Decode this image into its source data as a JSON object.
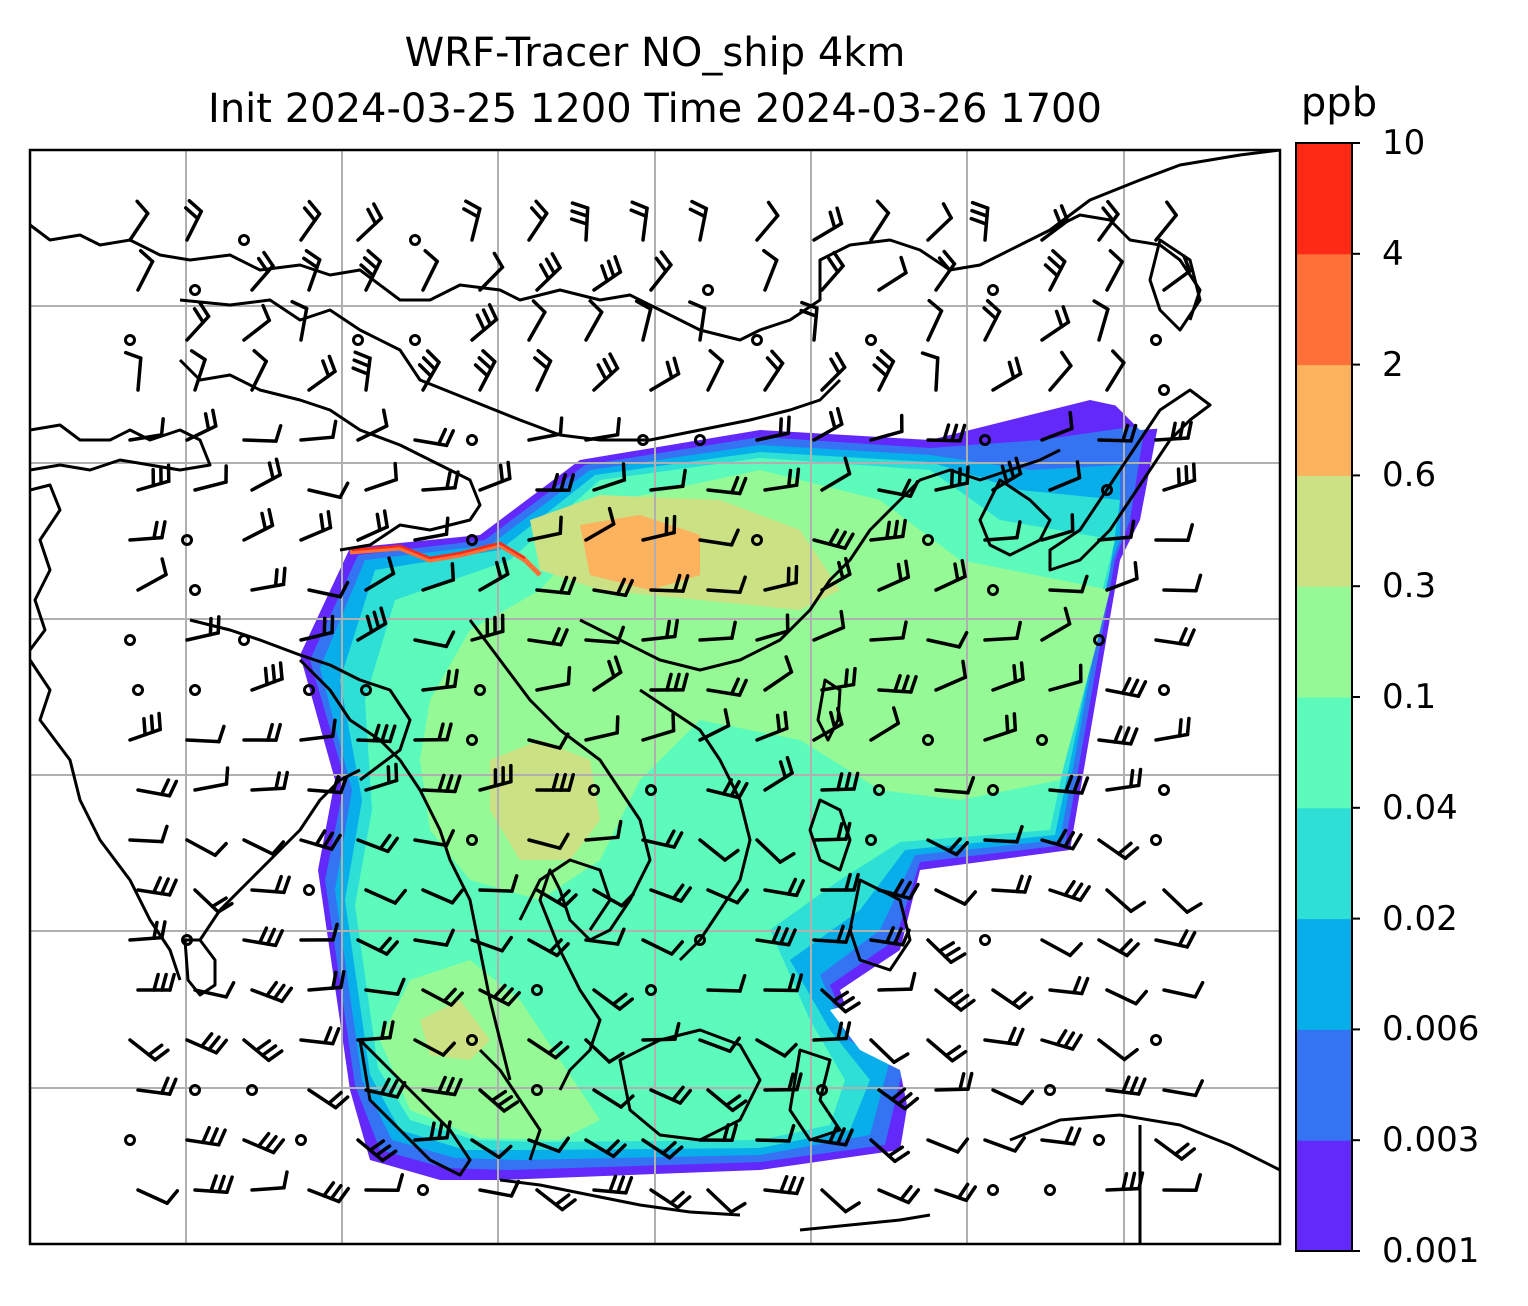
{
  "title": {
    "line1": "WRF-Tracer NO_ship 4km",
    "line2": "Init 2024-03-25 1200 Time 2024-03-26 1700"
  },
  "colorbar": {
    "unit": "ppb",
    "levels": [
      "0.001",
      "0.003",
      "0.006",
      "0.02",
      "0.04",
      "0.1",
      "0.3",
      "0.6",
      "2",
      "4",
      "10"
    ],
    "colors": [
      "#6328fa",
      "#3474f3",
      "#07aeea",
      "#2ddfd5",
      "#5cfbbc",
      "#95f995",
      "#cbe184",
      "#fdb25e",
      "#ff6f38",
      "#fe2a15"
    ]
  },
  "map": {
    "gridlines": true,
    "coastline_color": "#000000",
    "grid_color": "#b0b0b0"
  }
}
